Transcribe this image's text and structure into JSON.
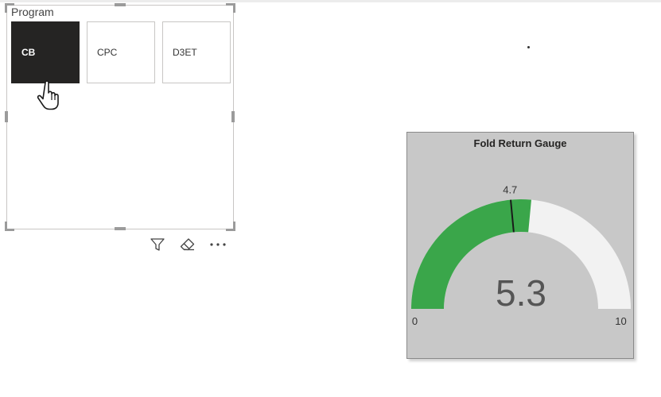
{
  "slicer": {
    "title": "Program",
    "items": [
      {
        "label": "CB",
        "selected": true
      },
      {
        "label": "CPC",
        "selected": false
      },
      {
        "label": "D3ET",
        "selected": false
      }
    ]
  },
  "visual_actions": [
    "filter-icon",
    "eraser-icon",
    "more-options-icon"
  ],
  "gauge": {
    "title": "Fold Return Gauge",
    "value": 5.3,
    "value_label": "5.3",
    "target": 4.7,
    "target_label": "4.7",
    "min": 0,
    "min_label": "0",
    "max": 10,
    "max_label": "10",
    "fill_color": "#3aa64a",
    "track_color": "#f2f2f2",
    "card_color": "#c8c8c8"
  }
}
